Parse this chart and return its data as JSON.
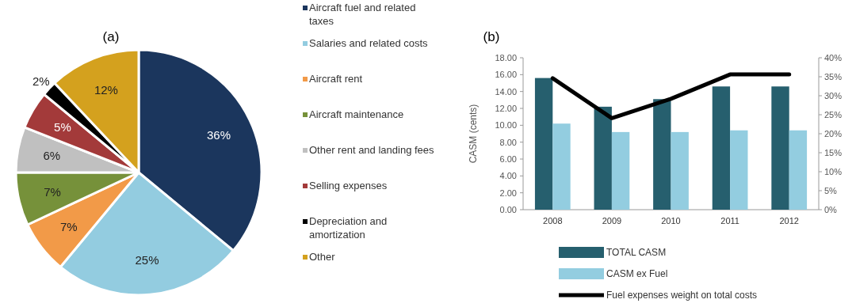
{
  "chart_data": [
    {
      "type": "pie",
      "title": "(a)",
      "categories": [
        "Aircraft fuel and related taxes",
        "Salaries and related costs",
        "Aircraft rent",
        "Aircraft maintenance",
        "Other rent and landing fees",
        "Selling expenses",
        "Depreciation and amortization",
        "Other"
      ],
      "values": [
        36,
        25,
        7,
        7,
        6,
        5,
        2,
        12
      ],
      "value_labels": [
        "36%",
        "25%",
        "7%",
        "7%",
        "6%",
        "5%",
        "2%",
        "12%"
      ],
      "colors": [
        "#1b365d",
        "#93cce0",
        "#f29a48",
        "#76913a",
        "#c0c0c0",
        "#a33a3a",
        "#000000",
        "#d4a11e"
      ],
      "legend": "right"
    },
    {
      "type": "bar",
      "title": "(b)",
      "ylabel": "CASM (cents)",
      "categories": [
        "2008",
        "2009",
        "2010",
        "2011",
        "2012"
      ],
      "series": [
        {
          "name": "TOTAL CASM",
          "color": "#265f6e",
          "values": [
            15.6,
            12.2,
            13.1,
            14.6,
            14.6
          ]
        },
        {
          "name": "CASM ex Fuel",
          "color": "#93cde0",
          "values": [
            10.2,
            9.2,
            9.2,
            9.4,
            9.4
          ]
        },
        {
          "name": "Fuel expenses weight on total costs",
          "type": "line",
          "axis": "y2",
          "color": "#000000",
          "values": [
            34.6,
            24.1,
            29.2,
            35.6,
            35.6
          ]
        }
      ],
      "ylim": [
        0,
        18
      ],
      "yticks": [
        {
          "value": 0,
          "label": "0.00"
        },
        {
          "value": 2,
          "label": "2.00"
        },
        {
          "value": 4,
          "label": "4.00"
        },
        {
          "value": 6,
          "label": "6.00"
        },
        {
          "value": 8,
          "label": "8.00"
        },
        {
          "value": 10,
          "label": "10.00"
        },
        {
          "value": 12,
          "label": "12.00"
        },
        {
          "value": 14,
          "label": "14.00"
        },
        {
          "value": 16,
          "label": "16.00"
        },
        {
          "value": 18,
          "label": "18.00"
        }
      ],
      "y2lim": [
        0,
        40
      ],
      "y2ticks": [
        {
          "value": 0,
          "label": "0%"
        },
        {
          "value": 5,
          "label": "5%"
        },
        {
          "value": 10,
          "label": "10%"
        },
        {
          "value": 15,
          "label": "15%"
        },
        {
          "value": 20,
          "label": "20%"
        },
        {
          "value": 25,
          "label": "25%"
        },
        {
          "value": 30,
          "label": "30%"
        },
        {
          "value": 35,
          "label": "35%"
        },
        {
          "value": 40,
          "label": "40%"
        }
      ],
      "legend": "bottom"
    }
  ]
}
